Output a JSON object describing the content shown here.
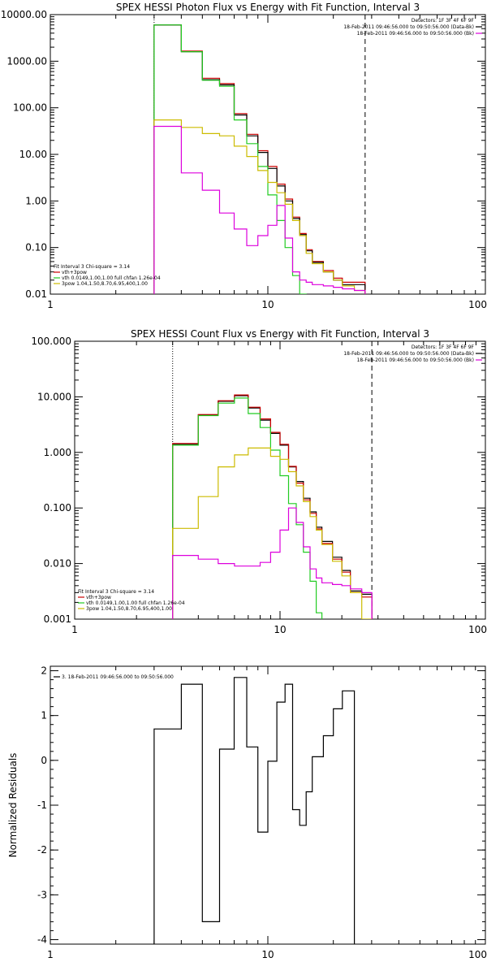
{
  "chart_data": [
    {
      "type": "line",
      "title": "SPEX HESSI Photon Flux vs Energy with Fit Function, Interval 3",
      "xscale": "log",
      "yscale": "log",
      "xlim": [
        1,
        100
      ],
      "ylim": [
        0.01,
        10000
      ],
      "xticks": [
        1,
        10,
        100
      ],
      "xtick_labels": [
        "1",
        "10",
        "100"
      ],
      "yticks": [
        0.01,
        0.1,
        1,
        10,
        100,
        1000,
        10000
      ],
      "ytick_labels": [
        "0.01",
        "0.10",
        "1.00",
        "10.00",
        "100.00",
        "1000.00",
        "10000.00"
      ],
      "vlines": [
        {
          "x": 3,
          "style": "dotted",
          "color": "#000000"
        },
        {
          "x": 28,
          "style": "dashed",
          "color": "#000000"
        }
      ],
      "edges": [
        3,
        4,
        5,
        6,
        7,
        8,
        9,
        10,
        11,
        12,
        13,
        14,
        15,
        16,
        18,
        20,
        22,
        25,
        28
      ],
      "series": [
        {
          "name": "vth+3pow",
          "color": "#cc0000",
          "values": [
            6000,
            1650,
            430,
            330,
            75,
            27,
            12,
            5.5,
            2.3,
            1.1,
            0.45,
            0.2,
            0.09,
            0.05,
            0.032,
            0.022,
            0.018,
            0.018
          ]
        },
        {
          "color": "#000000",
          "values": [
            6000,
            1600,
            400,
            310,
            70,
            25,
            11,
            5,
            2.1,
            1,
            0.42,
            0.19,
            0.085,
            0.048,
            0.03,
            0.02,
            0.016,
            0.016
          ]
        },
        {
          "name": "vth 0.0149,1.00,1.00 full chfan 1.26e-04",
          "color": "#22cc22",
          "values": [
            6000,
            1600,
            390,
            290,
            55,
            17,
            5.5,
            1.35,
            0.38,
            0.1,
            0.025,
            0.01
          ]
        },
        {
          "name": "3pow 1.04,1.50,8.70,6.95,400,1.00",
          "color": "#ccbb00",
          "values": [
            55,
            38,
            28,
            25,
            15,
            9,
            4.5,
            2.5,
            1.5,
            0.85,
            0.38,
            0.18,
            0.075,
            0.045,
            0.03,
            0.02,
            0.015,
            0.012
          ]
        },
        {
          "color": "#dd00dd",
          "values": [
            40,
            4,
            1.7,
            0.55,
            0.25,
            0.11,
            0.18,
            0.3,
            0.8,
            0.16,
            0.03,
            0.02,
            0.018,
            0.016,
            0.015,
            0.014,
            0.013,
            0.012
          ]
        }
      ],
      "info_lines": [
        "Detectors: 1F 3F 4F 6F 9F",
        "18-Feb-2011 09:46:56.000 to 09:50:56.000 (Data-Bk)",
        "18-Feb-2011 09:46:56.000 to 09:50:56.000 (Bk)"
      ],
      "info_colors": [
        "#000000",
        "#000000",
        "#dd00dd"
      ],
      "legend_lines": [
        "Fit Interval 3   Chi-square = 3.14",
        "vth+3pow",
        "vth 0.0149,1.00,1.00  full chfan 1.26e-04",
        "3pow 1.04,1.50,8.70,6.95,400,1.00"
      ],
      "legend_colors": [
        "",
        "#cc0000",
        "#22cc22",
        "#ccbb00"
      ]
    },
    {
      "type": "line",
      "title": "SPEX HESSI Count Flux vs Energy with Fit Function, Interval 3",
      "xscale": "log",
      "yscale": "log",
      "xlim": [
        1,
        100
      ],
      "ylim": [
        0.001,
        100
      ],
      "xticks": [
        1,
        10,
        100
      ],
      "xtick_labels": [
        "1",
        "10",
        "100"
      ],
      "yticks": [
        0.001,
        0.01,
        0.1,
        1,
        10,
        100
      ],
      "ytick_labels": [
        "0.001",
        "0.010",
        "0.100",
        "1.000",
        "10.000",
        "100.000"
      ],
      "vlines": [
        {
          "x": 3,
          "style": "dotted",
          "color": "#000000"
        },
        {
          "x": 28,
          "style": "dashed",
          "color": "#000000"
        }
      ],
      "edges": [
        3,
        4,
        5,
        6,
        7,
        8,
        9,
        10,
        11,
        12,
        13,
        14,
        15,
        16,
        18,
        20,
        22,
        25,
        28
      ],
      "series": [
        {
          "color": "#000000",
          "values": [
            1.4,
            4.7,
            8.3,
            10.5,
            6.3,
            3.8,
            2.2,
            1.35,
            0.55,
            0.3,
            0.15,
            0.085,
            0.045,
            0.025,
            0.013,
            0.0075,
            0.0032,
            0.0028
          ]
        },
        {
          "name": "vth+3pow",
          "color": "#cc0000",
          "values": [
            1.45,
            4.8,
            8.5,
            10.8,
            6.5,
            4.0,
            2.3,
            1.4,
            0.56,
            0.28,
            0.14,
            0.08,
            0.042,
            0.023,
            0.012,
            0.007,
            0.003,
            0.0025
          ]
        },
        {
          "name": "vth 0.0149,1.00,1.00  full chfan 1.26e-04",
          "color": "#22cc22",
          "values": [
            1.35,
            4.6,
            7.7,
            9.5,
            5.0,
            2.8,
            1.1,
            0.38,
            0.12,
            0.05,
            0.016,
            0.0048,
            0.0013,
            0.0009
          ]
        },
        {
          "name": "3pow 1.04,1.50,8.70,6.95,400,1.00",
          "color": "#ccbb00",
          "values": [
            0.043,
            0.16,
            0.55,
            0.9,
            1.2,
            1.2,
            0.85,
            0.75,
            0.45,
            0.25,
            0.13,
            0.07,
            0.04,
            0.022,
            0.011,
            0.006,
            0.003,
            0.001
          ]
        },
        {
          "color": "#dd00dd",
          "values": [
            0.014,
            0.012,
            0.01,
            0.009,
            0.009,
            0.0105,
            0.016,
            0.04,
            0.1,
            0.055,
            0.02,
            0.008,
            0.0055,
            0.0045,
            0.0042,
            0.004,
            0.0035,
            0.003
          ]
        }
      ],
      "info_lines": [
        "Detectors: 1F 3F 4F 6F 9F",
        "18-Feb-2011 09:46:56.000 to 09:50:56.000 (Data-Bk)",
        "18-Feb-2011 09:46:56.000 to 09:50:56.000 (Bk)"
      ],
      "info_colors": [
        "#000000",
        "#000000",
        "#dd00dd"
      ],
      "legend_lines": [
        "Fit Interval 3   Chi-square = 3.14",
        "vth+3pow",
        "vth 0.0149,1.00,1.00  full chfan 1.26e-04",
        "3pow 1.04,1.50,8.70,6.95,400,1.00"
      ],
      "legend_colors": [
        "",
        "#cc0000",
        "#22cc22",
        "#ccbb00"
      ]
    },
    {
      "type": "line",
      "title": "",
      "xscale": "log",
      "yscale": "linear",
      "xlim": [
        1,
        100
      ],
      "ylim": [
        -4.1,
        2.1
      ],
      "xticks": [
        1,
        10,
        100
      ],
      "xtick_labels": [
        "1",
        "10",
        "100"
      ],
      "yticks": [
        -4,
        -3,
        -2,
        -1,
        0,
        1,
        2
      ],
      "ytick_labels": [
        "-4",
        "-3",
        "-2",
        "-1",
        "0",
        "1",
        "2"
      ],
      "ylabel": "Normalized Residuals",
      "vlines": [],
      "edges": [
        3,
        4,
        5,
        6,
        7,
        8,
        9,
        10,
        11,
        12,
        13,
        14,
        15,
        16,
        18,
        20,
        22,
        25,
        28
      ],
      "drop_to_bottom": true,
      "series": [
        {
          "color": "#000000",
          "values": [
            0.7,
            1.7,
            -3.6,
            0.25,
            1.85,
            0.3,
            -1.6,
            -0.02,
            1.3,
            1.7,
            -1.1,
            -1.45,
            -0.7,
            0.08,
            0.55,
            1.15,
            1.55
          ]
        }
      ],
      "info_lines": [],
      "info_colors": [],
      "legend_lines": [
        "3. 18-Feb-2011 09:46:56.000 to 09:50:56.000"
      ],
      "legend_colors": [
        "#000000"
      ]
    }
  ]
}
